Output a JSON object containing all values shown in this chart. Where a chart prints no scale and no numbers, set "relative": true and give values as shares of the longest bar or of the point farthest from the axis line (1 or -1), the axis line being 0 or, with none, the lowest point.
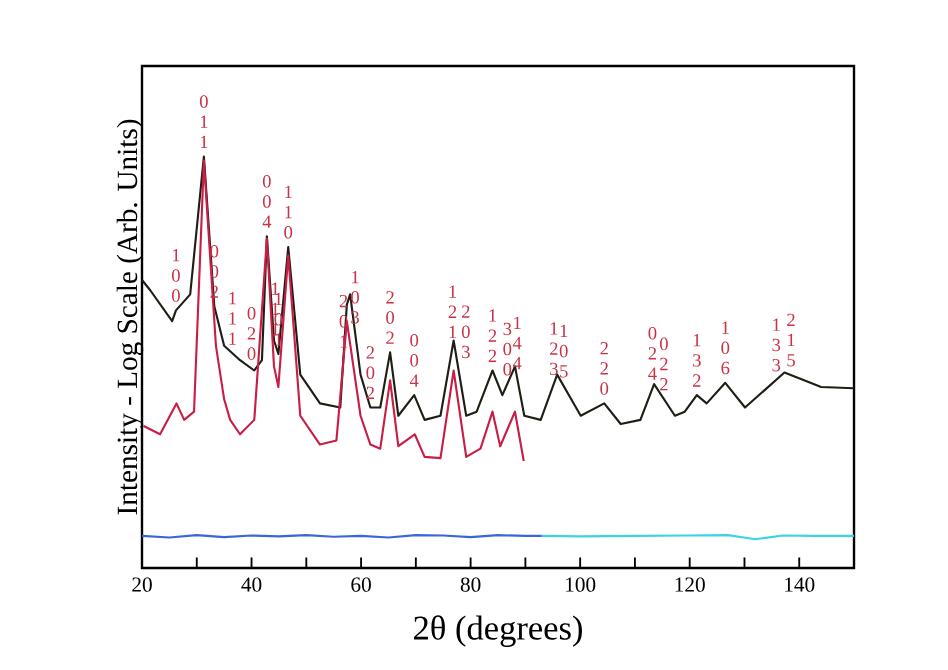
{
  "chart_data": {
    "type": "line",
    "relative": true,
    "xlabel": "2θ (degrees)",
    "ylabel": "Intensity - Log Scale (Arb. Units)",
    "xlim": [
      20,
      150
    ],
    "xticks": [
      20,
      {
        "value": 30,
        "label": null
      },
      40,
      {
        "value": 50,
        "label": null
      },
      60,
      {
        "value": 70,
        "label": null
      },
      80,
      {
        "value": 90,
        "label": null
      },
      100,
      {
        "value": 110,
        "label": null
      },
      120,
      {
        "value": 130,
        "label": null
      },
      140
    ],
    "grid": false,
    "legend": false,
    "marker": "none",
    "line_style": "solid",
    "series": [
      {
        "color": "#1e1e14",
        "x": [
          20.0,
          21.5,
          25.5,
          26.2,
          28.8,
          31.3,
          33.2,
          35.0,
          37.9,
          40.5,
          41.9,
          42.8,
          44.1,
          44.9,
          46.7,
          48.9,
          52.5,
          56.2,
          57.4,
          58.0,
          59.9,
          61.7,
          63.5,
          65.3,
          66.8,
          69.7,
          71.6,
          74.5,
          76.9,
          79.2,
          81.1,
          84.0,
          85.8,
          88.1,
          89.8,
          92.8,
          95.8,
          100.1,
          104.4,
          107.4,
          111.0,
          113.5,
          117.3,
          119.1,
          121.3,
          123.1,
          126.5,
          130.1,
          137.3,
          144.0,
          150.0
        ],
        "values": [
          0.7,
          0.675,
          0.6,
          0.626,
          0.665,
          1.0,
          0.636,
          0.54,
          0.505,
          0.48,
          0.505,
          0.806,
          0.553,
          0.52,
          0.78,
          0.47,
          0.4,
          0.39,
          0.64,
          0.665,
          0.47,
          0.39,
          0.39,
          0.524,
          0.37,
          0.42,
          0.36,
          0.37,
          0.553,
          0.37,
          0.38,
          0.48,
          0.42,
          0.49,
          0.37,
          0.36,
          0.47,
          0.37,
          0.4,
          0.35,
          0.36,
          0.447,
          0.37,
          0.38,
          0.42,
          0.4,
          0.45,
          0.39,
          0.475,
          0.44,
          0.437
        ]
      },
      {
        "color": "#c81e46",
        "x": [
          20.3,
          23.3,
          26.3,
          27.7,
          29.5,
          31.3,
          33.5,
          35.0,
          36.1,
          37.9,
          40.5,
          42.8,
          44.1,
          44.9,
          46.7,
          48.9,
          52.5,
          55.5,
          57.4,
          59.9,
          61.7,
          63.5,
          65.3,
          66.8,
          69.8,
          71.6,
          74.5,
          76.9,
          79.2,
          81.8,
          84.0,
          85.4,
          88.1,
          89.7
        ],
        "values": [
          0.345,
          0.325,
          0.4,
          0.36,
          0.38,
          0.99,
          0.54,
          0.41,
          0.36,
          0.325,
          0.36,
          0.8,
          0.49,
          0.44,
          0.76,
          0.37,
          0.3,
          0.31,
          0.6,
          0.37,
          0.3,
          0.29,
          0.456,
          0.296,
          0.325,
          0.27,
          0.267,
          0.48,
          0.27,
          0.29,
          0.38,
          0.296,
          0.38,
          0.26
        ]
      },
      {
        "color": "#3c64dc",
        "x": [
          20,
          25,
          30,
          35,
          40,
          45,
          50,
          55,
          60,
          65,
          70,
          75,
          80,
          85,
          90,
          93
        ],
        "values": [
          0.078,
          0.074,
          0.08,
          0.075,
          0.079,
          0.077,
          0.08,
          0.076,
          0.078,
          0.074,
          0.08,
          0.079,
          0.075,
          0.08,
          0.078,
          0.078
        ]
      },
      {
        "color": "#3cd2e6",
        "x": [
          93,
          100,
          110,
          120,
          127,
          132,
          137,
          143,
          150
        ],
        "values": [
          0.078,
          0.077,
          0.078,
          0.079,
          0.08,
          0.07,
          0.079,
          0.078,
          0.078
        ]
      }
    ],
    "annotations": [
      {
        "text": "100",
        "x": 26.2,
        "y": 0.626
      },
      {
        "text": "011",
        "x": 31.3,
        "y": 1.0
      },
      {
        "text": "002",
        "x": 33.2,
        "y": 0.636
      },
      {
        "text": "111",
        "x": 36.5,
        "y": 0.522
      },
      {
        "text": "020",
        "x": 40.0,
        "y": 0.485
      },
      {
        "text": "004",
        "x": 42.8,
        "y": 0.806
      },
      {
        "text": "111",
        "x": 44.3,
        "y": 0.545
      },
      {
        "text": "101",
        "x": 44.9,
        "y": 0.52
      },
      {
        "text": "110",
        "x": 46.7,
        "y": 0.78
      },
      {
        "text": "201",
        "x": 56.8,
        "y": 0.515
      },
      {
        "text": "103",
        "x": 58.9,
        "y": 0.573
      },
      {
        "text": "202",
        "x": 61.7,
        "y": 0.39
      },
      {
        "text": "202",
        "x": 65.3,
        "y": 0.524
      },
      {
        "text": "004",
        "x": 69.7,
        "y": 0.42
      },
      {
        "text": "121",
        "x": 76.7,
        "y": 0.538
      },
      {
        "text": "203",
        "x": 77.7,
        "y": 0.489
      },
      {
        "text": "122",
        "x": 84.0,
        "y": 0.48
      },
      {
        "text": "300",
        "x": 86.7,
        "y": 0.447
      },
      {
        "text": "144",
        "x": 88.5,
        "y": 0.462
      },
      {
        "text": "123",
        "x": 95.2,
        "y": 0.448
      },
      {
        "text": "105",
        "x": 97.0,
        "y": 0.442
      },
      {
        "text": "220",
        "x": 104.4,
        "y": 0.4
      },
      {
        "text": "024",
        "x": 113.2,
        "y": 0.437
      },
      {
        "text": "022",
        "x": 115.3,
        "y": 0.411
      },
      {
        "text": "132",
        "x": 121.3,
        "y": 0.42
      },
      {
        "text": "106",
        "x": 126.5,
        "y": 0.45
      },
      {
        "text": "133",
        "x": 135.8,
        "y": 0.457
      },
      {
        "text": "215",
        "x": 138.5,
        "y": 0.469
      }
    ]
  }
}
